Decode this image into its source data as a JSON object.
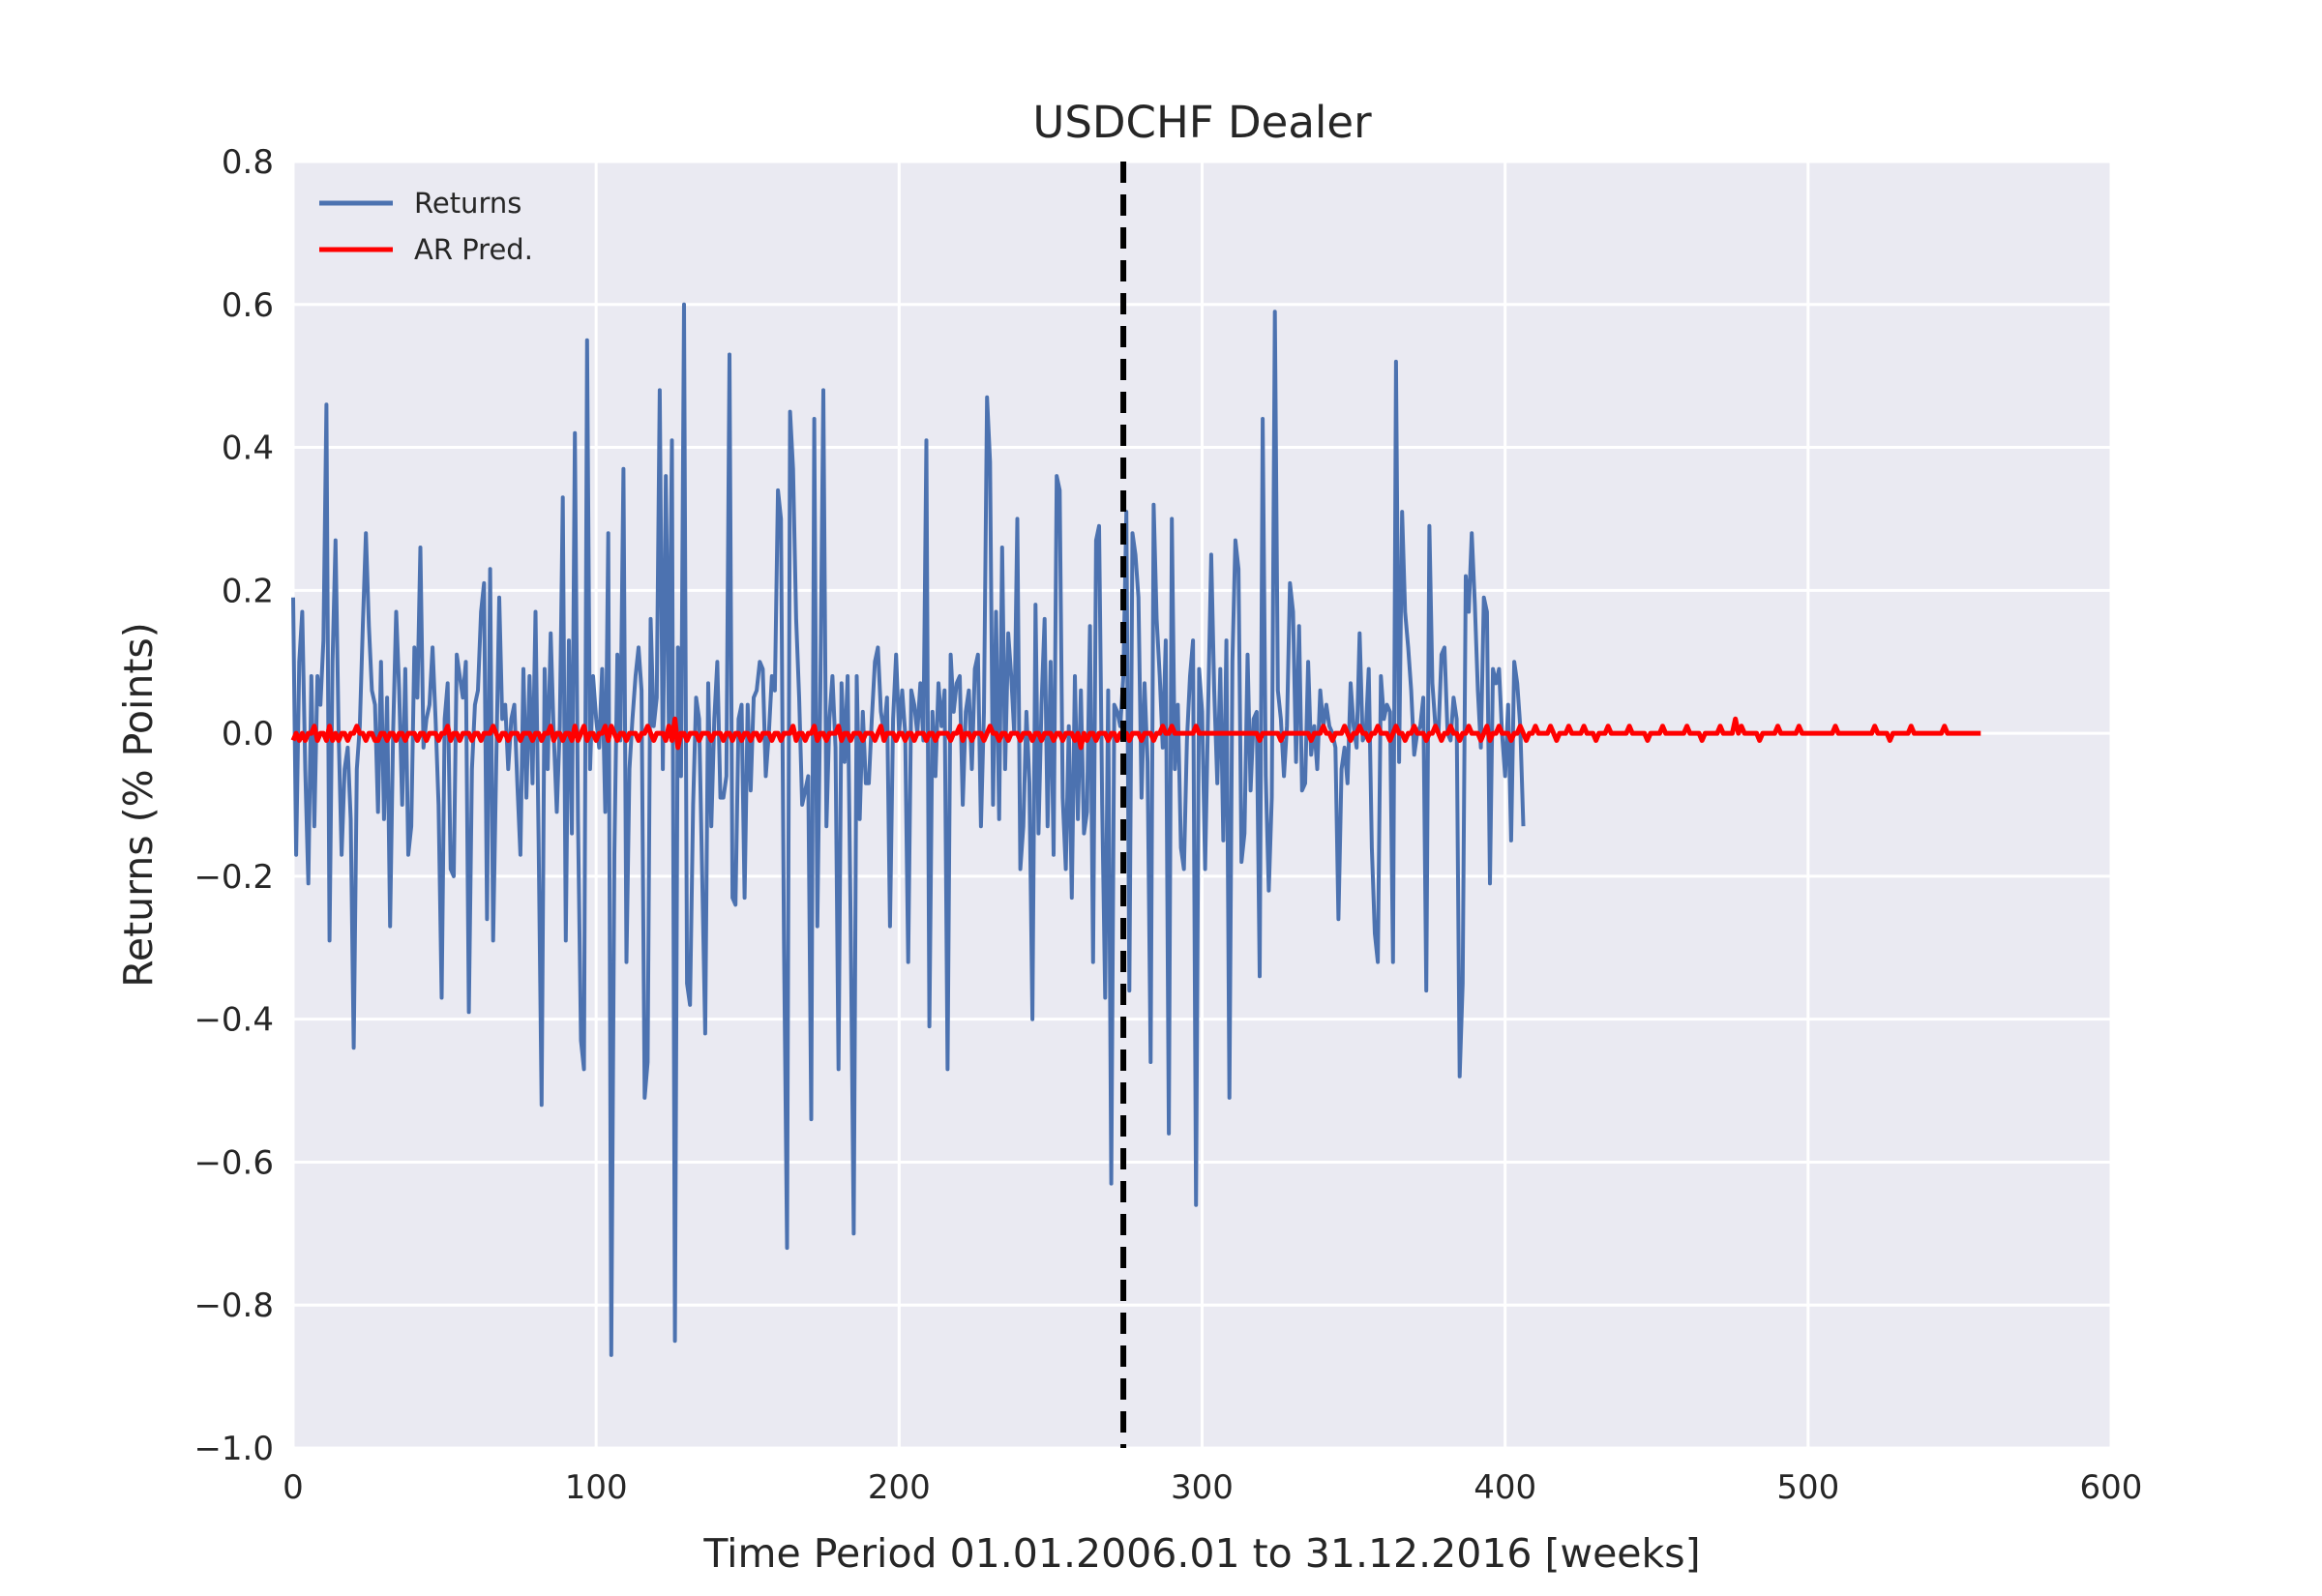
{
  "chart_data": {
    "type": "line",
    "title": "USDCHF Dealer",
    "xlabel": "Time Period 01.01.2006.01 to 31.12.2016 [weeks]",
    "ylabel": "Returns (% Points)",
    "xlim": [
      0,
      600
    ],
    "ylim": [
      -1.0,
      0.8
    ],
    "xticks": [
      0,
      100,
      200,
      300,
      400,
      500,
      600
    ],
    "xtick_labels": [
      "0",
      "100",
      "200",
      "300",
      "400",
      "500",
      "600"
    ],
    "yticks": [
      -1.0,
      -0.8,
      -0.6,
      -0.4,
      -0.2,
      0.0,
      0.2,
      0.4,
      0.6,
      0.8
    ],
    "ytick_labels": [
      "−1.0",
      "−0.8",
      "−0.6",
      "−0.4",
      "−0.2",
      "0.0",
      "0.2",
      "0.4",
      "0.6",
      "0.8"
    ],
    "grid": true,
    "legend_position": "top-left",
    "vline": {
      "x": 274,
      "color": "#000000",
      "style": "dashed"
    },
    "series": [
      {
        "name": "Returns",
        "color": "#4c72b0",
        "x_start": 0,
        "x_step": 1,
        "values": [
          0.19,
          -0.17,
          0.1,
          0.17,
          -0.05,
          -0.21,
          0.08,
          -0.13,
          0.08,
          0.04,
          0.13,
          0.46,
          -0.29,
          0.1,
          0.27,
          0.0,
          -0.17,
          -0.05,
          -0.02,
          -0.12,
          -0.44,
          -0.05,
          0.01,
          0.15,
          0.28,
          0.15,
          0.06,
          0.04,
          -0.11,
          0.1,
          -0.12,
          0.05,
          -0.27,
          0.0,
          0.17,
          0.06,
          -0.1,
          0.09,
          -0.17,
          -0.13,
          0.12,
          0.05,
          0.26,
          -0.02,
          0.02,
          0.04,
          0.12,
          0.02,
          -0.1,
          -0.37,
          0.02,
          0.07,
          -0.19,
          -0.2,
          0.11,
          0.08,
          0.05,
          0.1,
          -0.39,
          -0.05,
          0.04,
          0.06,
          0.17,
          0.21,
          -0.26,
          0.23,
          -0.29,
          -0.05,
          0.19,
          0.02,
          0.04,
          -0.05,
          0.02,
          0.04,
          -0.07,
          -0.17,
          0.09,
          -0.09,
          0.08,
          -0.07,
          0.17,
          -0.15,
          -0.52,
          0.09,
          -0.05,
          0.14,
          0.0,
          -0.11,
          0.01,
          0.33,
          -0.29,
          0.13,
          -0.14,
          0.42,
          -0.12,
          -0.43,
          -0.47,
          0.55,
          -0.05,
          0.08,
          0.02,
          -0.02,
          0.09,
          -0.11,
          0.28,
          -0.87,
          -0.17,
          0.11,
          -0.01,
          0.37,
          -0.32,
          -0.05,
          0.02,
          0.08,
          0.12,
          0.06,
          -0.51,
          -0.46,
          0.16,
          0.01,
          0.05,
          0.48,
          -0.05,
          0.36,
          0.01,
          0.41,
          -0.85,
          0.12,
          -0.06,
          0.6,
          -0.35,
          -0.38,
          -0.1,
          0.05,
          0.02,
          -0.2,
          -0.42,
          0.07,
          -0.13,
          0.02,
          0.1,
          -0.09,
          -0.09,
          -0.06,
          0.53,
          -0.23,
          -0.24,
          0.02,
          0.04,
          -0.23,
          0.04,
          -0.08,
          0.05,
          0.06,
          0.1,
          0.09,
          -0.06,
          0.0,
          0.08,
          0.06,
          0.34,
          0.3,
          -0.29,
          -0.72,
          0.45,
          0.37,
          0.16,
          0.05,
          -0.1,
          -0.08,
          -0.06,
          -0.54,
          0.44,
          -0.27,
          0.06,
          0.48,
          -0.13,
          0.02,
          0.08,
          -0.02,
          -0.47,
          0.07,
          -0.04,
          0.08,
          -0.26,
          -0.7,
          0.08,
          -0.12,
          0.03,
          -0.07,
          -0.07,
          0.02,
          0.1,
          0.12,
          0.03,
          0.0,
          0.05,
          -0.27,
          0.02,
          0.11,
          0.0,
          0.06,
          0.0,
          -0.32,
          0.06,
          0.04,
          0.0,
          0.07,
          -0.01,
          0.41,
          -0.41,
          0.03,
          -0.06,
          0.07,
          0.01,
          0.06,
          -0.47,
          0.11,
          0.03,
          0.07,
          0.08,
          -0.1,
          0.03,
          0.06,
          -0.05,
          0.09,
          0.11,
          -0.13,
          0.03,
          0.47,
          0.38,
          -0.1,
          0.17,
          -0.12,
          0.26,
          -0.05,
          0.14,
          0.08,
          0.0,
          0.3,
          -0.19,
          -0.13,
          0.03,
          -0.07,
          -0.4,
          0.18,
          -0.14,
          0.04,
          0.16,
          -0.13,
          0.1,
          -0.17,
          0.36,
          0.34,
          -0.09,
          -0.19,
          0.01,
          -0.23,
          0.08,
          -0.12,
          0.06,
          -0.14,
          -0.11,
          0.15,
          -0.32,
          0.27,
          0.29,
          -0.1,
          -0.37,
          0.06,
          -0.63,
          0.04,
          0.03,
          0.01,
          0.08,
          0.31,
          -0.36,
          0.28,
          0.25,
          0.19,
          -0.09,
          0.07,
          -0.04,
          -0.46,
          0.32,
          0.16,
          0.08,
          -0.02,
          0.13,
          -0.56,
          0.3,
          -0.05,
          0.04,
          -0.16,
          -0.19,
          -0.01,
          0.08,
          0.13,
          -0.66,
          0.09,
          0.03,
          -0.19,
          0.04,
          0.25,
          0.06,
          -0.07,
          0.09,
          -0.15,
          0.13,
          -0.51,
          0.1,
          0.27,
          0.23,
          -0.18,
          -0.14,
          0.11,
          -0.08,
          0.02,
          0.03,
          -0.34,
          0.44,
          -0.06,
          -0.22,
          -0.09,
          0.59,
          0.06,
          0.02,
          -0.06,
          0.01,
          0.21,
          0.17,
          -0.04,
          0.15,
          -0.08,
          -0.07,
          0.1,
          -0.03,
          0.01,
          -0.05,
          0.06,
          0.01,
          0.04,
          0.01,
          0.0,
          -0.02,
          -0.26,
          -0.05,
          -0.02,
          -0.07,
          0.07,
          0.01,
          -0.02,
          0.14,
          -0.01,
          0.0,
          0.09,
          -0.16,
          -0.28,
          -0.32,
          0.08,
          0.02,
          0.04,
          0.03,
          -0.32,
          0.52,
          -0.04,
          0.31,
          0.17,
          0.12,
          0.06,
          -0.03,
          0.0,
          0.01,
          0.05,
          -0.36,
          0.29,
          0.07,
          0.01,
          0.0,
          0.11,
          0.12,
          0.0,
          -0.01,
          0.05,
          0.02,
          -0.48,
          -0.35,
          0.22,
          0.17,
          0.28,
          0.18,
          0.06,
          -0.02,
          0.19,
          0.17,
          -0.21,
          0.09,
          0.07,
          0.09,
          0.0,
          -0.06,
          0.04,
          -0.15,
          0.1,
          0.07,
          0.01,
          -0.13
        ]
      },
      {
        "name": "AR Pred.",
        "color": "#ff0000",
        "x_start": 0,
        "x_step": 1,
        "values": [
          -0.01,
          0.0,
          -0.01,
          0.0,
          -0.01,
          0.0,
          0.0,
          0.01,
          -0.01,
          0.0,
          0.0,
          -0.01,
          0.01,
          -0.01,
          0.0,
          -0.01,
          0.0,
          0.0,
          -0.01,
          0.0,
          0.0,
          0.01,
          0.0,
          0.0,
          -0.01,
          0.0,
          0.0,
          -0.01,
          -0.01,
          0.0,
          0.0,
          -0.01,
          0.0,
          0.0,
          -0.01,
          0.0,
          0.0,
          -0.01,
          0.0,
          0.0,
          0.0,
          -0.01,
          0.0,
          0.0,
          -0.01,
          0.0,
          0.0,
          0.0,
          -0.01,
          0.0,
          0.0,
          0.01,
          -0.01,
          0.0,
          0.0,
          -0.01,
          0.0,
          0.0,
          0.0,
          -0.01,
          0.0,
          0.0,
          -0.01,
          0.0,
          0.0,
          0.0,
          0.01,
          0.0,
          -0.01,
          0.0,
          0.0,
          -0.01,
          0.0,
          0.0,
          0.0,
          -0.01,
          0.0,
          0.0,
          0.0,
          -0.01,
          0.0,
          0.0,
          -0.01,
          0.0,
          0.0,
          0.01,
          -0.01,
          0.0,
          0.0,
          -0.01,
          0.0,
          0.0,
          -0.01,
          0.01,
          -0.01,
          0.0,
          0.01,
          -0.01,
          0.0,
          0.0,
          -0.01,
          0.0,
          0.0,
          0.01,
          -0.01,
          0.01,
          0.0,
          -0.01,
          0.0,
          0.0,
          -0.01,
          0.0,
          0.0,
          0.0,
          -0.01,
          0.0,
          0.0,
          0.01,
          0.0,
          -0.01,
          0.0,
          0.0,
          0.0,
          -0.01,
          0.01,
          -0.01,
          0.02,
          -0.02,
          0.0,
          0.0,
          -0.01,
          0.0,
          0.0,
          0.0,
          -0.01,
          0.0,
          0.0,
          0.0,
          -0.01,
          0.0,
          0.0,
          0.0,
          -0.01,
          0.0,
          0.0,
          -0.01,
          0.0,
          0.0,
          -0.01,
          0.0,
          0.0,
          -0.01,
          0.0,
          0.0,
          -0.01,
          0.0,
          0.0,
          0.0,
          -0.01,
          0.0,
          0.0,
          -0.01,
          0.0,
          0.0,
          0.0,
          0.01,
          -0.01,
          0.0,
          0.0,
          -0.01,
          0.0,
          0.0,
          0.01,
          -0.01,
          0.0,
          0.0,
          -0.01,
          0.0,
          0.0,
          0.0,
          0.01,
          -0.01,
          0.0,
          0.0,
          -0.01,
          0.0,
          0.0,
          0.0,
          -0.01,
          0.0,
          0.0,
          0.0,
          -0.01,
          0.0,
          0.01,
          -0.01,
          0.0,
          0.0,
          0.0,
          -0.01,
          0.0,
          0.0,
          -0.01,
          0.0,
          0.0,
          -0.01,
          0.0,
          0.0,
          0.0,
          -0.01,
          0.0,
          0.0,
          -0.01,
          0.0,
          0.0,
          0.0,
          0.0,
          -0.01,
          0.0,
          0.0,
          0.01,
          -0.01,
          0.0,
          0.0,
          -0.01,
          0.0,
          0.0,
          0.0,
          -0.01,
          0.0,
          0.01,
          0.0,
          0.0,
          -0.01,
          0.0,
          0.0,
          -0.01,
          0.0,
          0.0,
          0.0,
          -0.01,
          0.0,
          0.0,
          0.0,
          -0.01,
          0.0,
          0.0,
          -0.01,
          0.0,
          0.0,
          0.0,
          -0.01,
          0.0,
          0.0,
          -0.01,
          0.0,
          0.0,
          0.0,
          -0.01,
          0.0,
          -0.02,
          0.0,
          -0.01,
          0.0,
          0.0,
          -0.01,
          0.0,
          0.0,
          0.0,
          -0.01,
          0.0,
          0.0,
          -0.01,
          0.0,
          0.0,
          0.0,
          -0.01,
          0.0,
          0.0,
          0.0,
          -0.01,
          0.0,
          0.0,
          0.0,
          -0.01,
          0.0,
          0.0,
          0.01,
          0.0,
          0.0,
          0.01,
          0.0,
          0.0,
          0.0,
          0.0,
          0.0,
          0.0,
          0.0,
          0.01,
          0.0,
          0.0,
          0.0,
          0.0,
          0.0,
          0.0,
          0.0,
          0.0,
          0.0,
          0.0,
          0.0,
          0.0,
          0.0,
          0.0,
          0.0,
          0.0,
          0.0,
          0.0,
          0.0,
          0.0,
          -0.01,
          0.0,
          0.0,
          0.0,
          0.0,
          0.0,
          0.0,
          -0.01,
          0.0,
          0.0,
          0.0,
          0.0,
          0.0,
          0.0,
          0.0,
          0.0,
          0.0,
          -0.01,
          0.0,
          0.0,
          0.0,
          0.01,
          0.0,
          0.0,
          -0.01,
          0.0,
          0.0,
          0.0,
          0.01,
          0.0,
          -0.01,
          0.0,
          0.0,
          0.01,
          0.0,
          0.0,
          -0.01,
          0.0,
          0.0,
          0.01,
          0.0,
          0.0,
          0.0,
          -0.01,
          0.0,
          0.01,
          0.0,
          0.0,
          -0.01,
          0.0,
          0.0,
          0.01,
          0.0,
          0.0,
          0.0,
          -0.01,
          0.0,
          0.0,
          0.01,
          0.0,
          -0.01,
          0.0,
          0.0,
          0.01,
          0.0,
          0.0,
          -0.01,
          0.0,
          0.0,
          0.01,
          0.0,
          0.0,
          0.0,
          -0.01,
          0.0,
          0.01,
          -0.01,
          0.0,
          0.0,
          0.01,
          0.0,
          0.0,
          0.0,
          -0.01,
          0.0,
          0.0,
          0.01,
          0.0,
          -0.01,
          0.0,
          0.0,
          0.01,
          0.0,
          0.0,
          0.0,
          0.0,
          0.01,
          0.0,
          -0.01,
          0.0,
          0.0,
          0.0,
          0.01,
          0.0,
          0.0,
          0.0,
          0.0,
          0.01,
          0.0,
          0.0,
          0.0,
          -0.01,
          0.0,
          0.0,
          0.0,
          0.01,
          0.0,
          0.0,
          0.0,
          0.0,
          0.0,
          0.0,
          0.01,
          0.0,
          0.0,
          0.0,
          0.0,
          0.0,
          -0.01,
          0.0,
          0.0,
          0.0,
          0.0,
          0.01,
          0.0,
          0.0,
          0.0,
          0.0,
          0.0,
          0.0,
          0.0,
          0.01,
          0.0,
          0.0,
          0.0,
          0.0,
          -0.01,
          0.0,
          0.0,
          0.0,
          0.0,
          0.0,
          0.01,
          0.0,
          0.0,
          0.0,
          0.0,
          0.02,
          0.0,
          0.01,
          0.0,
          0.0,
          0.0,
          0.0,
          0.0,
          -0.01,
          0.0,
          0.0,
          0.0,
          0.0,
          0.0,
          0.01,
          0.0,
          0.0,
          0.0,
          0.0,
          0.0,
          0.0,
          0.01,
          0.0,
          0.0,
          0.0,
          0.0,
          0.0,
          0.0,
          0.0,
          0.0,
          0.0,
          0.0,
          0.0,
          0.01,
          0.0,
          0.0,
          0.0,
          0.0,
          0.0,
          0.0,
          0.0,
          0.0,
          0.0,
          0.0,
          0.0,
          0.0,
          0.01,
          0.0,
          0.0,
          0.0,
          0.0,
          -0.01,
          0.0,
          0.0,
          0.0,
          0.0,
          0.0,
          0.0,
          0.01,
          0.0,
          0.0,
          0.0,
          0.0,
          0.0,
          0.0,
          0.0,
          0.0,
          0.0,
          0.0,
          0.01,
          0.0,
          0.0,
          0.0,
          0.0,
          0.0,
          0.0,
          0.0,
          0.0,
          0.0,
          0.0,
          0.0,
          0.0
        ]
      }
    ]
  }
}
